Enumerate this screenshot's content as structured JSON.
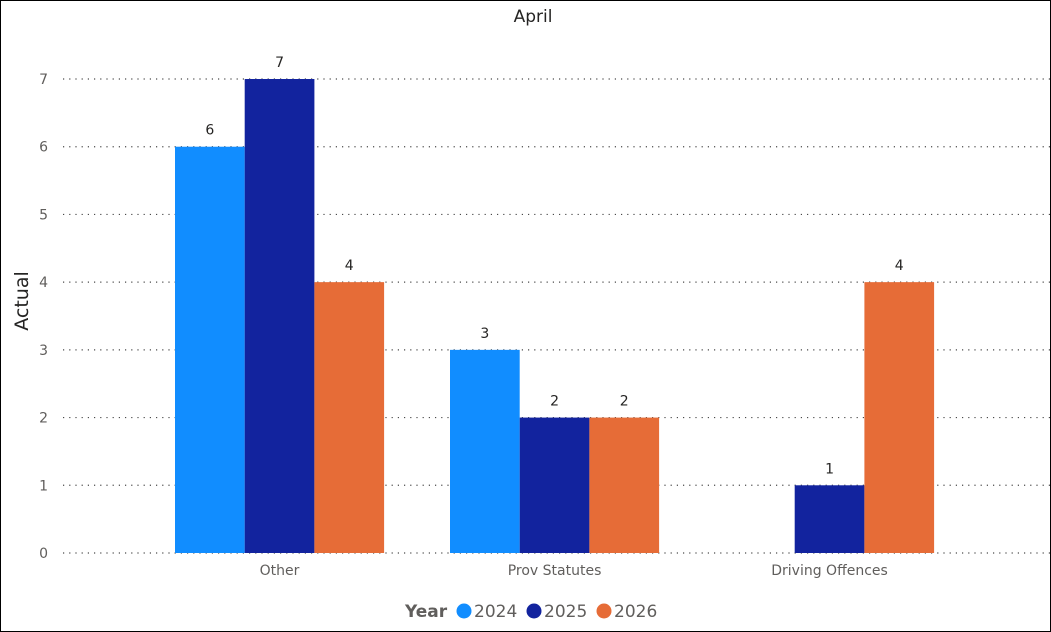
{
  "chart_data": {
    "type": "bar",
    "title": "April",
    "xlabel": "",
    "ylabel": "Actual",
    "ylim": [
      0,
      7
    ],
    "yticks": [
      0,
      1,
      2,
      3,
      4,
      5,
      6,
      7
    ],
    "grid": true,
    "categories": [
      "Other",
      "Prov Statutes",
      "Driving Offences"
    ],
    "series": [
      {
        "name": "2024",
        "color": "#118dff",
        "values": [
          6,
          3,
          null
        ]
      },
      {
        "name": "2025",
        "color": "#12239e",
        "values": [
          7,
          2,
          1
        ]
      },
      {
        "name": "2026",
        "color": "#e66c37",
        "values": [
          4,
          2,
          4
        ]
      }
    ],
    "legend": {
      "title": "Year",
      "position": "bottom-center"
    }
  }
}
